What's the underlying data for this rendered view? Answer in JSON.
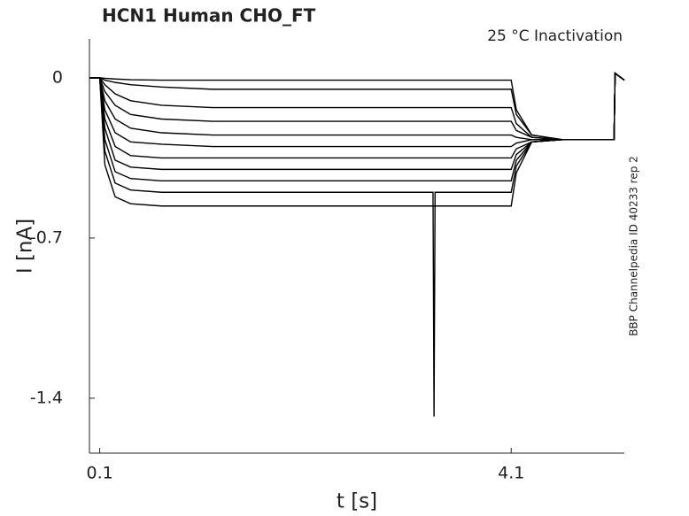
{
  "chart_data": {
    "type": "line",
    "title": "HCN1  Human  CHO_FT",
    "annotation": "25 °C  Inactivation",
    "side_note": "BBP Channelpedia ID 40233 rep 2",
    "xlabel": "t [s]",
    "ylabel": "I [nA]",
    "xlim": [
      0,
      5.2
    ],
    "ylim": [
      -1.64,
      0.17
    ],
    "xticks": [
      0.1,
      4.1
    ],
    "yticks": [
      0,
      -0.7,
      -1.4
    ],
    "x": [
      0,
      0.1,
      0.15,
      0.25,
      0.4,
      0.7,
      1.2,
      2,
      3,
      3.34,
      3.35,
      3.36,
      4,
      4.1,
      4.15,
      4.3,
      4.6,
      5.1,
      5.11,
      5.2
    ],
    "series": [
      {
        "color": "#000000",
        "values": [
          0,
          0,
          -0.002,
          -0.005,
          -0.008,
          -0.01,
          -0.01,
          -0.01,
          -0.01,
          -0.01,
          -0.01,
          -0.01,
          -0.01,
          -0.01,
          -0.14,
          -0.25,
          -0.27,
          -0.27,
          0.02,
          -0.01
        ]
      },
      {
        "color": "#000000",
        "values": [
          0,
          0,
          -0.01,
          -0.02,
          -0.03,
          -0.04,
          -0.05,
          -0.05,
          -0.05,
          -0.05,
          -0.05,
          -0.05,
          -0.05,
          -0.05,
          -0.16,
          -0.25,
          -0.27,
          -0.27,
          0.02,
          -0.01
        ]
      },
      {
        "color": "#000000",
        "values": [
          0,
          0,
          -0.03,
          -0.07,
          -0.1,
          -0.12,
          -0.13,
          -0.13,
          -0.13,
          -0.13,
          -0.13,
          -0.13,
          -0.13,
          -0.13,
          -0.2,
          -0.26,
          -0.27,
          -0.27,
          0.02,
          -0.01
        ]
      },
      {
        "color": "#000000",
        "values": [
          0,
          0,
          -0.06,
          -0.12,
          -0.16,
          -0.18,
          -0.19,
          -0.19,
          -0.19,
          -0.19,
          -0.19,
          -0.19,
          -0.19,
          -0.19,
          -0.23,
          -0.26,
          -0.27,
          -0.27,
          0.02,
          -0.01
        ]
      },
      {
        "color": "#000000",
        "values": [
          0,
          0,
          -0.1,
          -0.18,
          -0.22,
          -0.24,
          -0.25,
          -0.25,
          -0.25,
          -0.25,
          -0.25,
          -0.25,
          -0.25,
          -0.25,
          -0.26,
          -0.27,
          -0.27,
          -0.27,
          0.02,
          -0.01
        ]
      },
      {
        "color": "#000000",
        "values": [
          0,
          0,
          -0.14,
          -0.24,
          -0.28,
          -0.29,
          -0.3,
          -0.3,
          -0.3,
          -0.3,
          -0.3,
          -0.3,
          -0.3,
          -0.3,
          -0.285,
          -0.27,
          -0.27,
          -0.27,
          0.02,
          -0.01
        ]
      },
      {
        "color": "#000000",
        "values": [
          0,
          0,
          -0.18,
          -0.3,
          -0.34,
          -0.35,
          -0.35,
          -0.35,
          -0.35,
          -0.35,
          -0.35,
          -0.35,
          -0.35,
          -0.35,
          -0.31,
          -0.28,
          -0.27,
          -0.27,
          0.02,
          -0.01
        ]
      },
      {
        "color": "#000000",
        "values": [
          0,
          0,
          -0.22,
          -0.36,
          -0.39,
          -0.4,
          -0.4,
          -0.4,
          -0.4,
          -0.4,
          -0.4,
          -0.4,
          -0.4,
          -0.4,
          -0.335,
          -0.28,
          -0.27,
          -0.27,
          0.02,
          -0.01
        ]
      },
      {
        "color": "#000000",
        "values": [
          0,
          0,
          -0.27,
          -0.41,
          -0.44,
          -0.45,
          -0.45,
          -0.45,
          -0.45,
          -0.45,
          -0.45,
          -0.45,
          -0.45,
          -0.45,
          -0.36,
          -0.28,
          -0.27,
          -0.27,
          0.02,
          -0.01
        ]
      },
      {
        "color": "#000000",
        "values": [
          0,
          0,
          -0.32,
          -0.46,
          -0.49,
          -0.5,
          -0.5,
          -0.5,
          -0.5,
          -0.5,
          -1.48,
          -0.5,
          -0.5,
          -0.5,
          -0.385,
          -0.28,
          -0.27,
          -0.27,
          0.02,
          -0.01
        ]
      },
      {
        "color": "#000000",
        "values": [
          0,
          0,
          -0.38,
          -0.52,
          -0.55,
          -0.56,
          -0.56,
          -0.56,
          -0.56,
          -0.56,
          -0.56,
          -0.56,
          -0.56,
          -0.56,
          -0.415,
          -0.28,
          -0.27,
          -0.27,
          0.02,
          -0.01
        ]
      }
    ]
  }
}
